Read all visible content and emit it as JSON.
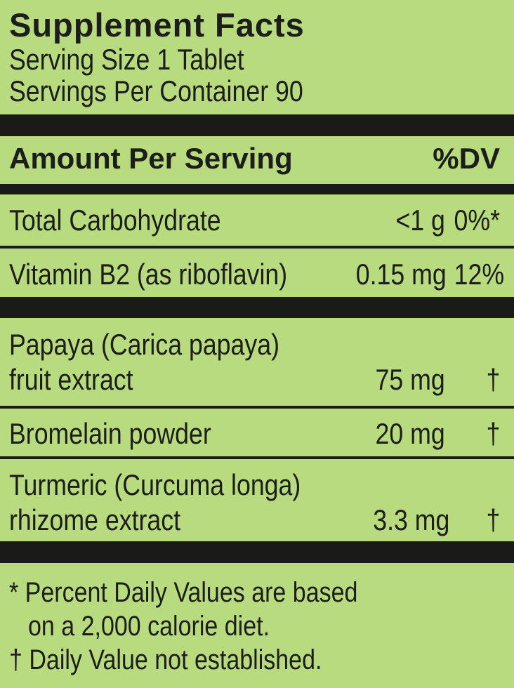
{
  "label": {
    "title": "Supplement Facts",
    "serving_size": "Serving Size 1 Tablet",
    "servings_per_container": "Servings Per Container 90",
    "header": {
      "amount_per_serving": "Amount Per Serving",
      "dv": "%DV"
    },
    "rows": [
      {
        "name": "Total Carbohydrate",
        "amount": "<1 g",
        "dv": "0%*"
      },
      {
        "name": "Vitamin B2 (as riboflavin)",
        "amount": "0.15 mg",
        "dv": "12%"
      },
      {
        "name": "Papaya (Carica papaya)",
        "name2": "fruit extract",
        "amount": "75 mg",
        "dv": "†"
      },
      {
        "name": "Bromelain powder",
        "amount": "20 mg",
        "dv": "†"
      },
      {
        "name": "Turmeric (Curcuma longa)",
        "name2": "rhizome extract",
        "amount": "3.3 mg",
        "dv": "†"
      }
    ],
    "footnotes": {
      "line1": "* Percent Daily Values are based",
      "line2": "on a 2,000 calorie diet.",
      "line3": "† Daily Value not established."
    }
  },
  "colors": {
    "background": "#b7db7e",
    "text": "#1d1d1b",
    "bar": "#1a1a18"
  }
}
